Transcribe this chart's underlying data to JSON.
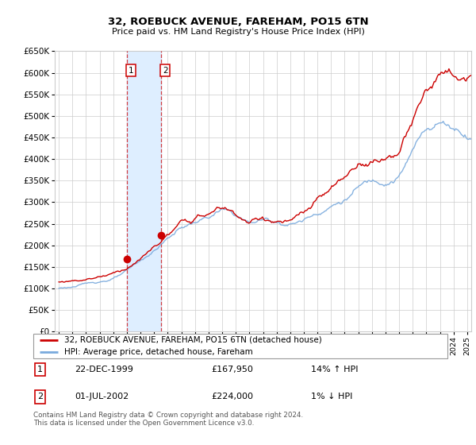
{
  "title": "32, ROEBUCK AVENUE, FAREHAM, PO15 6TN",
  "subtitle": "Price paid vs. HM Land Registry's House Price Index (HPI)",
  "footer": "Contains HM Land Registry data © Crown copyright and database right 2024.\nThis data is licensed under the Open Government Licence v3.0.",
  "legend_line1": "32, ROEBUCK AVENUE, FAREHAM, PO15 6TN (detached house)",
  "legend_line2": "HPI: Average price, detached house, Fareham",
  "sale1_date": "22-DEC-1999",
  "sale1_price": "£167,950",
  "sale1_hpi": "14% ↑ HPI",
  "sale2_date": "01-JUL-2002",
  "sale2_price": "£224,000",
  "sale2_hpi": "1% ↓ HPI",
  "hpi_color": "#7aaadd",
  "price_color": "#cc0000",
  "shade_color": "#deeeff",
  "grid_color": "#cccccc",
  "background_color": "#ffffff",
  "sale1_x": 2000.0,
  "sale1_y": 167950,
  "sale2_x": 2002.5,
  "sale2_y": 224000,
  "shade_x1": 2000.0,
  "shade_x2": 2002.5,
  "ylim": [
    0,
    650000
  ],
  "xlim_left": 1994.7,
  "xlim_right": 2025.3,
  "yticks": [
    0,
    50000,
    100000,
    150000,
    200000,
    250000,
    300000,
    350000,
    400000,
    450000,
    500000,
    550000,
    600000,
    650000
  ]
}
